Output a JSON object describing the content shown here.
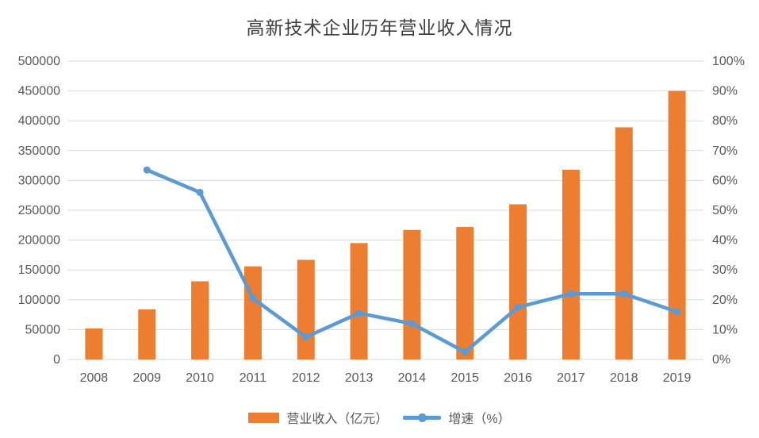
{
  "chart_data": {
    "type": "bar",
    "combo": "bar+line",
    "title": "高新技术企业历年营业收入情况",
    "categories": [
      "2008",
      "2009",
      "2010",
      "2011",
      "2012",
      "2013",
      "2014",
      "2015",
      "2016",
      "2017",
      "2018",
      "2019"
    ],
    "series": [
      {
        "name": "营业收入（亿元）",
        "type": "bar",
        "axis": "left",
        "color": "#ED7D31",
        "values": [
          52000,
          84000,
          131000,
          156000,
          167000,
          195000,
          217000,
          222000,
          260000,
          318000,
          389000,
          450000
        ]
      },
      {
        "name": "增速（%）",
        "type": "line",
        "axis": "right",
        "color": "#5B9BD5",
        "values": [
          null,
          63.5,
          56,
          20.5,
          7.5,
          15.5,
          12,
          2.5,
          17.5,
          22,
          22,
          16
        ]
      }
    ],
    "left_axis": {
      "min": 0,
      "max": 500000,
      "step": 50000,
      "ticks": [
        "0",
        "50000",
        "100000",
        "150000",
        "200000",
        "250000",
        "300000",
        "350000",
        "400000",
        "450000",
        "500000"
      ]
    },
    "right_axis": {
      "min": 0,
      "max": 100,
      "step": 10,
      "ticks": [
        "0%",
        "10%",
        "20%",
        "30%",
        "40%",
        "50%",
        "60%",
        "70%",
        "80%",
        "90%",
        "100%"
      ]
    },
    "grid": true,
    "gridline_color": "#D9D9D9",
    "axis_text_color": "#595959",
    "legend_position": "bottom"
  }
}
